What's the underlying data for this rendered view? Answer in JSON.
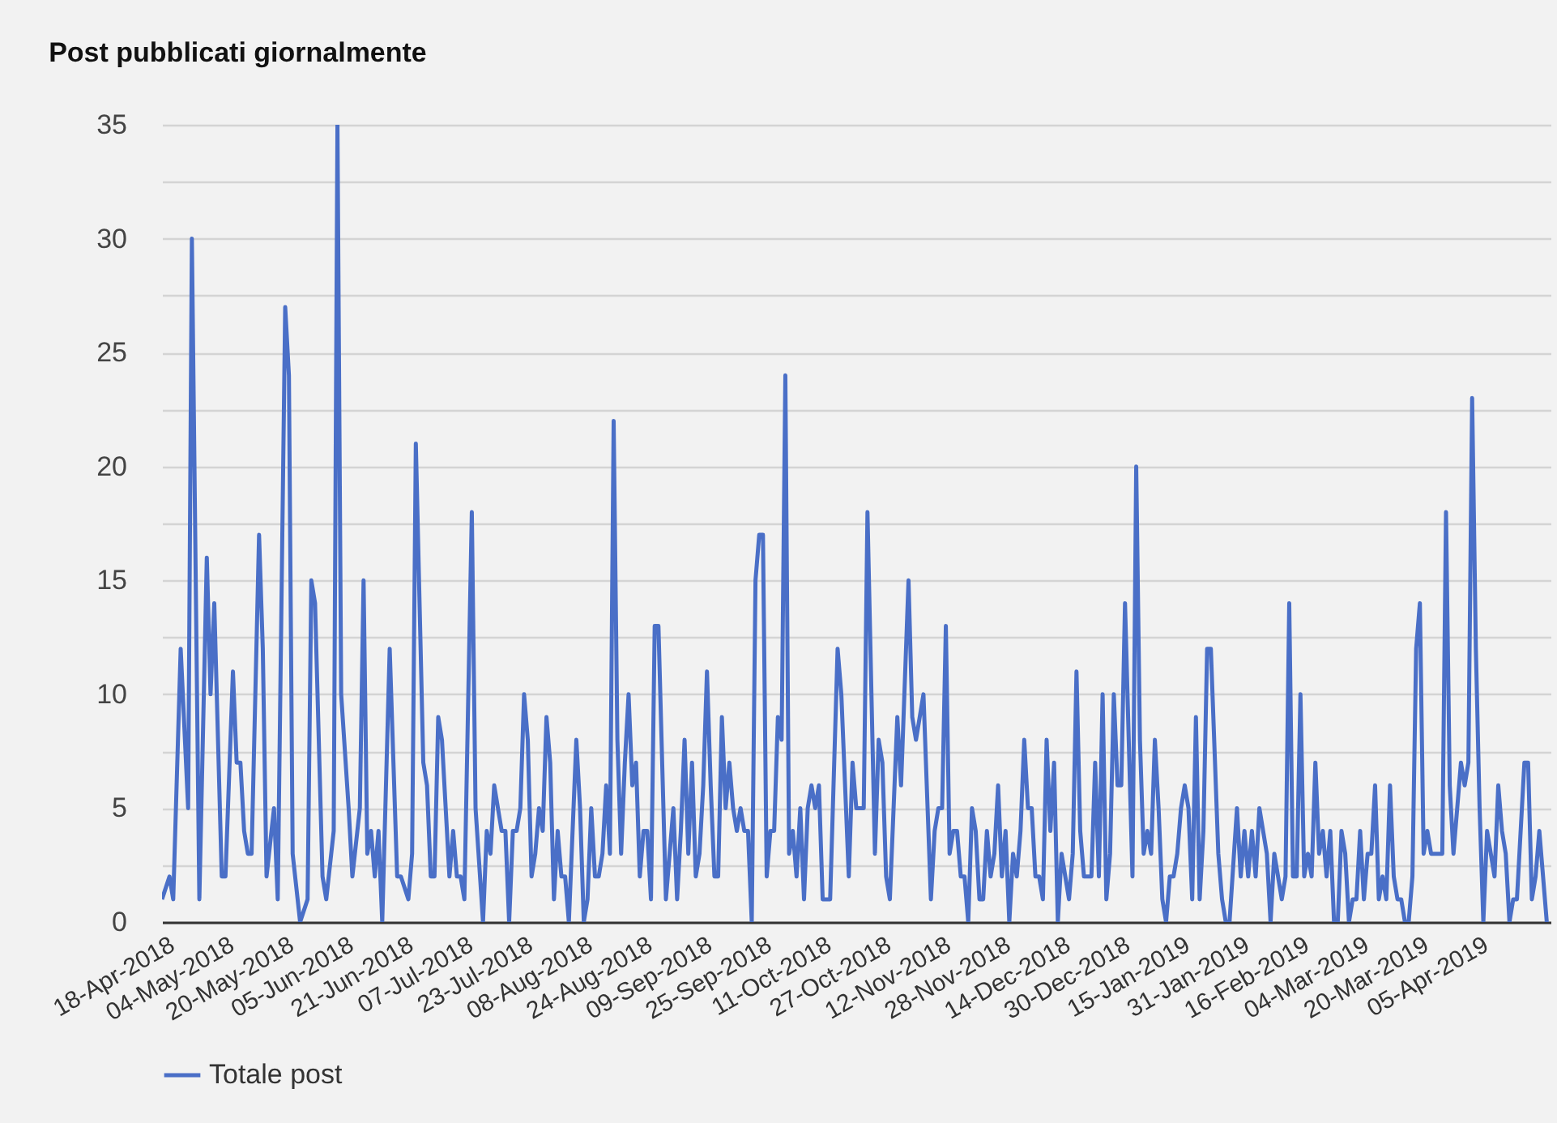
{
  "chart_data": {
    "type": "line",
    "title": "Post pubblicati giornalmente",
    "grid": "y",
    "legend": "bottom",
    "marker": "none",
    "line_style": "solid",
    "xlim": [
      "2018-04-17",
      "2019-04-24"
    ],
    "xticks": [
      {
        "value": "2018-04-18",
        "label": "18-Apr-2018"
      },
      {
        "value": "2018-05-04",
        "label": "04-May-2018"
      },
      {
        "value": "2018-05-20",
        "label": "20-May-2018"
      },
      {
        "value": "2018-06-05",
        "label": "05-Jun-2018"
      },
      {
        "value": "2018-06-21",
        "label": "21-Jun-2018"
      },
      {
        "value": "2018-07-07",
        "label": "07-Jul-2018"
      },
      {
        "value": "2018-07-23",
        "label": "23-Jul-2018"
      },
      {
        "value": "2018-08-08",
        "label": "08-Aug-2018"
      },
      {
        "value": "2018-08-24",
        "label": "24-Aug-2018"
      },
      {
        "value": "2018-09-09",
        "label": "09-Sep-2018"
      },
      {
        "value": "2018-09-25",
        "label": "25-Sep-2018"
      },
      {
        "value": "2018-10-11",
        "label": "11-Oct-2018"
      },
      {
        "value": "2018-10-27",
        "label": "27-Oct-2018"
      },
      {
        "value": "2018-11-12",
        "label": "12-Nov-2018"
      },
      {
        "value": "2018-11-28",
        "label": "28-Nov-2018"
      },
      {
        "value": "2018-12-14",
        "label": "14-Dec-2018"
      },
      {
        "value": "2018-12-30",
        "label": "30-Dec-2018"
      },
      {
        "value": "2019-01-15",
        "label": "15-Jan-2019"
      },
      {
        "value": "2019-01-31",
        "label": "31-Jan-2019"
      },
      {
        "value": "2019-02-16",
        "label": "16-Feb-2019"
      },
      {
        "value": "2019-03-04",
        "label": "04-Mar-2019"
      },
      {
        "value": "2019-03-20",
        "label": "20-Mar-2019"
      },
      {
        "value": "2019-04-05",
        "label": "05-Apr-2019"
      }
    ],
    "ylim": [
      0,
      35
    ],
    "yticks": [
      0,
      {
        "value": 2.5,
        "label": null
      },
      5,
      {
        "value": 7.5,
        "label": null
      },
      10,
      {
        "value": 12.5,
        "label": null
      },
      15,
      {
        "value": 17.5,
        "label": null
      },
      20,
      {
        "value": 22.5,
        "label": null
      },
      25,
      {
        "value": 27.5,
        "label": null
      },
      30,
      {
        "value": 32.5,
        "label": null
      },
      35
    ],
    "series": [
      {
        "name": "Totale post",
        "color": "#4a6fc7",
        "x": [
          "2018-04-17",
          "2018-04-19",
          "2018-04-20",
          "2018-04-22",
          "2018-04-24",
          "2018-04-25",
          "2018-04-27",
          "2018-04-29",
          "2018-04-30",
          "2018-05-01",
          "2018-05-03",
          "2018-05-04",
          "2018-05-06",
          "2018-05-07",
          "2018-05-08",
          "2018-05-09",
          "2018-05-10",
          "2018-05-11",
          "2018-05-13",
          "2018-05-14",
          "2018-05-15",
          "2018-05-17",
          "2018-05-18",
          "2018-05-20",
          "2018-05-21",
          "2018-05-22",
          "2018-05-24",
          "2018-05-26",
          "2018-05-27",
          "2018-05-28",
          "2018-05-30",
          "2018-05-31",
          "2018-06-02",
          "2018-06-03",
          "2018-06-04",
          "2018-06-06",
          "2018-06-07",
          "2018-06-09",
          "2018-06-10",
          "2018-06-11",
          "2018-06-12",
          "2018-06-13",
          "2018-06-14",
          "2018-06-15",
          "2018-06-17",
          "2018-06-19",
          "2018-06-20",
          "2018-06-22",
          "2018-06-23",
          "2018-06-24",
          "2018-06-26",
          "2018-06-27",
          "2018-06-28",
          "2018-06-29",
          "2018-06-30",
          "2018-07-01",
          "2018-07-03",
          "2018-07-04",
          "2018-07-05",
          "2018-07-06",
          "2018-07-07",
          "2018-07-09",
          "2018-07-10",
          "2018-07-12",
          "2018-07-13",
          "2018-07-14",
          "2018-07-15",
          "2018-07-17",
          "2018-07-18",
          "2018-07-19",
          "2018-07-20",
          "2018-07-21",
          "2018-07-22",
          "2018-07-23",
          "2018-07-24",
          "2018-07-25",
          "2018-07-26",
          "2018-07-27",
          "2018-07-28",
          "2018-07-29",
          "2018-07-30",
          "2018-07-31",
          "2018-08-01",
          "2018-08-02",
          "2018-08-03",
          "2018-08-04",
          "2018-08-06",
          "2018-08-07",
          "2018-08-08",
          "2018-08-09",
          "2018-08-10",
          "2018-08-11",
          "2018-08-12",
          "2018-08-13",
          "2018-08-14",
          "2018-08-15",
          "2018-08-16",
          "2018-08-17",
          "2018-08-18",
          "2018-08-19",
          "2018-08-20",
          "2018-08-21",
          "2018-08-22",
          "2018-08-23",
          "2018-08-24",
          "2018-08-25",
          "2018-08-26",
          "2018-08-27",
          "2018-08-28",
          "2018-08-30",
          "2018-08-31",
          "2018-09-01",
          "2018-09-02",
          "2018-09-03",
          "2018-09-04",
          "2018-09-05",
          "2018-09-06",
          "2018-09-07",
          "2018-09-08",
          "2018-09-09",
          "2018-09-10",
          "2018-09-11",
          "2018-09-12",
          "2018-09-13",
          "2018-09-14",
          "2018-09-15",
          "2018-09-16",
          "2018-09-17",
          "2018-09-18",
          "2018-09-19",
          "2018-09-20",
          "2018-09-21",
          "2018-09-22",
          "2018-09-23",
          "2018-09-24",
          "2018-09-25",
          "2018-09-26",
          "2018-09-27",
          "2018-09-28",
          "2018-09-29",
          "2018-09-30",
          "2018-10-01",
          "2018-10-02",
          "2018-10-03",
          "2018-10-04",
          "2018-10-05",
          "2018-10-06",
          "2018-10-07",
          "2018-10-08",
          "2018-10-09",
          "2018-10-10",
          "2018-10-11",
          "2018-10-13",
          "2018-10-15",
          "2018-10-16",
          "2018-10-18",
          "2018-10-19",
          "2018-10-20",
          "2018-10-22",
          "2018-10-23",
          "2018-10-25",
          "2018-10-26",
          "2018-10-27",
          "2018-10-28",
          "2018-10-29",
          "2018-10-31",
          "2018-11-01",
          "2018-11-03",
          "2018-11-04",
          "2018-11-05",
          "2018-11-07",
          "2018-11-09",
          "2018-11-10",
          "2018-11-11",
          "2018-11-12",
          "2018-11-13",
          "2018-11-14",
          "2018-11-15",
          "2018-11-16",
          "2018-11-17",
          "2018-11-18",
          "2018-11-19",
          "2018-11-20",
          "2018-11-21",
          "2018-11-22",
          "2018-11-23",
          "2018-11-24",
          "2018-11-25",
          "2018-11-26",
          "2018-11-27",
          "2018-11-28",
          "2018-11-29",
          "2018-11-30",
          "2018-12-01",
          "2018-12-02",
          "2018-12-03",
          "2018-12-04",
          "2018-12-05",
          "2018-12-06",
          "2018-12-07",
          "2018-12-08",
          "2018-12-09",
          "2018-12-10",
          "2018-12-11",
          "2018-12-12",
          "2018-12-13",
          "2018-12-14",
          "2018-12-15",
          "2018-12-16",
          "2018-12-17",
          "2018-12-18",
          "2018-12-19",
          "2018-12-20",
          "2018-12-21",
          "2018-12-22",
          "2018-12-23",
          "2018-12-24",
          "2018-12-25",
          "2018-12-26",
          "2018-12-27",
          "2018-12-28",
          "2018-12-29",
          "2018-12-30",
          "2018-12-31",
          "2019-01-01",
          "2019-01-02",
          "2019-01-03",
          "2019-01-04",
          "2019-01-05",
          "2019-01-06",
          "2019-01-07",
          "2019-01-08",
          "2019-01-09",
          "2019-01-10",
          "2019-01-11",
          "2019-01-12",
          "2019-01-13",
          "2019-01-14",
          "2019-01-15",
          "2019-01-16",
          "2019-01-17",
          "2019-01-18",
          "2019-01-19",
          "2019-01-20",
          "2019-01-21",
          "2019-01-22",
          "2019-01-23",
          "2019-01-25",
          "2019-01-26",
          "2019-01-27",
          "2019-01-28",
          "2019-01-30",
          "2019-01-31",
          "2019-02-01",
          "2019-02-02",
          "2019-02-03",
          "2019-02-04",
          "2019-02-05",
          "2019-02-07",
          "2019-02-08",
          "2019-02-09",
          "2019-02-10",
          "2019-02-11",
          "2019-02-12",
          "2019-02-13",
          "2019-02-14",
          "2019-02-15",
          "2019-02-16",
          "2019-02-17",
          "2019-02-18",
          "2019-02-19",
          "2019-02-20",
          "2019-02-21",
          "2019-02-22",
          "2019-02-23",
          "2019-02-24",
          "2019-02-25",
          "2019-02-26",
          "2019-02-27",
          "2019-02-28",
          "2019-03-01",
          "2019-03-02",
          "2019-03-03",
          "2019-03-04",
          "2019-03-05",
          "2019-03-06",
          "2019-03-07",
          "2019-03-08",
          "2019-03-09",
          "2019-03-10",
          "2019-03-11",
          "2019-03-12",
          "2019-03-13",
          "2019-03-14",
          "2019-03-15",
          "2019-03-16",
          "2019-03-17",
          "2019-03-18",
          "2019-03-19",
          "2019-03-20",
          "2019-03-21",
          "2019-03-22",
          "2019-03-23",
          "2019-03-26",
          "2019-03-27",
          "2019-03-28",
          "2019-03-29",
          "2019-03-30",
          "2019-03-31",
          "2019-04-01",
          "2019-04-02",
          "2019-04-03",
          "2019-04-04",
          "2019-04-05",
          "2019-04-06",
          "2019-04-07",
          "2019-04-08",
          "2019-04-09",
          "2019-04-10",
          "2019-04-11",
          "2019-04-12",
          "2019-04-13",
          "2019-04-14",
          "2019-04-15",
          "2019-04-16",
          "2019-04-17",
          "2019-04-18",
          "2019-04-19",
          "2019-04-20",
          "2019-04-21",
          "2019-04-23"
        ],
        "values": [
          1,
          2,
          1,
          12,
          5,
          30,
          1,
          16,
          10,
          14,
          2,
          2,
          11,
          7,
          7,
          4,
          3,
          3,
          17,
          12,
          2,
          5,
          1,
          27,
          24,
          3,
          0,
          1,
          15,
          14,
          2,
          1,
          4,
          35,
          10,
          5,
          2,
          5,
          15,
          3,
          4,
          2,
          4,
          0,
          12,
          2,
          2,
          1,
          3,
          21,
          7,
          6,
          2,
          2,
          9,
          8,
          2,
          4,
          2,
          2,
          1,
          18,
          5,
          0,
          4,
          3,
          6,
          4,
          4,
          0,
          4,
          4,
          5,
          10,
          8,
          2,
          3,
          5,
          4,
          9,
          7,
          1,
          4,
          2,
          2,
          0,
          8,
          5,
          0,
          1,
          5,
          2,
          2,
          3,
          6,
          3,
          22,
          8,
          3,
          7,
          10,
          6,
          7,
          2,
          4,
          4,
          1,
          13,
          13,
          1,
          3,
          5,
          1,
          4,
          8,
          3,
          7,
          2,
          3,
          6,
          11,
          6,
          2,
          2,
          9,
          5,
          7,
          5,
          4,
          5,
          4,
          4,
          0,
          15,
          17,
          17,
          2,
          4,
          4,
          9,
          8,
          24,
          3,
          4,
          2,
          5,
          1,
          5,
          6,
          5,
          6,
          1,
          1,
          12,
          10,
          2,
          7,
          5,
          5,
          18,
          3,
          8,
          7,
          2,
          1,
          9,
          6,
          15,
          9,
          8,
          10,
          1,
          4,
          5,
          5,
          13,
          3,
          4,
          4,
          2,
          2,
          0,
          5,
          4,
          1,
          1,
          4,
          2,
          3,
          6,
          2,
          4,
          0,
          3,
          2,
          4,
          8,
          5,
          5,
          2,
          2,
          1,
          8,
          4,
          7,
          0,
          3,
          2,
          1,
          3,
          11,
          4,
          2,
          2,
          2,
          7,
          2,
          10,
          1,
          3,
          10,
          6,
          6,
          14,
          8,
          2,
          20,
          8,
          3,
          4,
          3,
          8,
          5,
          1,
          0,
          2,
          2,
          3,
          5,
          6,
          5,
          1,
          9,
          1,
          4,
          12,
          12,
          3,
          1,
          0,
          0,
          5,
          2,
          4,
          2,
          4,
          2,
          5,
          3,
          0,
          3,
          2,
          1,
          2,
          14,
          2,
          2,
          10,
          2,
          3,
          2,
          7,
          3,
          4,
          2,
          4,
          0,
          0,
          4,
          3,
          0,
          1,
          1,
          4,
          1,
          3,
          3,
          6,
          1,
          2,
          1,
          6,
          2,
          1,
          1,
          0,
          0,
          2,
          12,
          14,
          3,
          4,
          3,
          3,
          18,
          6,
          3,
          5,
          7,
          6,
          7,
          23,
          12,
          5,
          0,
          4,
          3,
          2,
          6,
          4,
          3,
          0,
          1,
          1,
          4,
          7,
          7,
          1,
          2,
          4,
          0
        ]
      }
    ]
  }
}
